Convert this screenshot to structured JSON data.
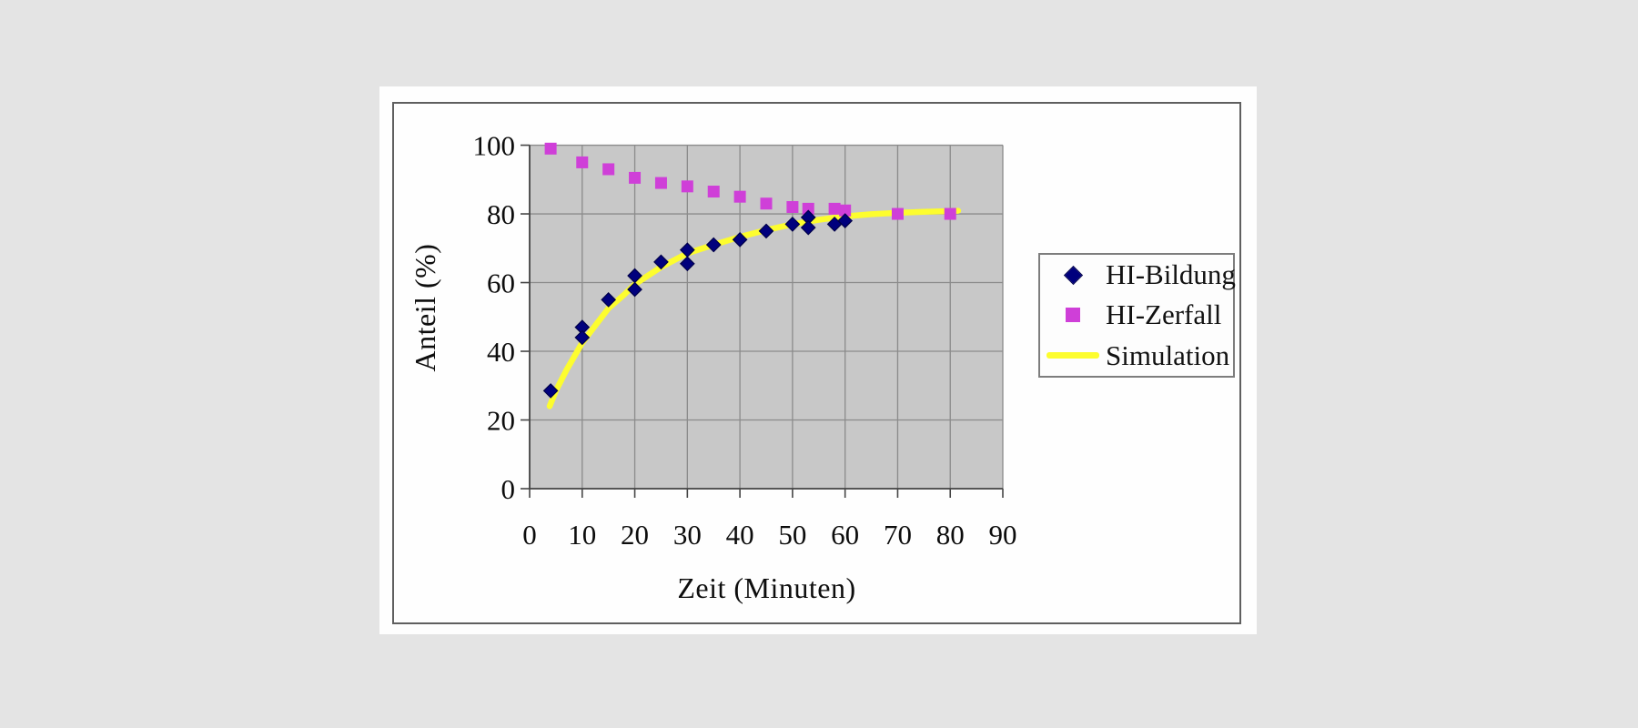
{
  "chart_data": {
    "type": "scatter",
    "title": "",
    "xlabel": "Zeit (Minuten)",
    "ylabel": "Anteil (%)",
    "xlim": [
      0,
      90
    ],
    "ylim": [
      0,
      100
    ],
    "x_ticks": [
      0,
      10,
      20,
      30,
      40,
      50,
      60,
      70,
      80,
      90
    ],
    "y_ticks": [
      0,
      20,
      40,
      60,
      80,
      100
    ],
    "grid": true,
    "legend_position": "right",
    "plot_bg": "#c8c8c8",
    "gridline_color": "#8b8b8b",
    "axis_color": "#454545",
    "series": [
      {
        "name": "HI-Bildung",
        "marker": "diamond",
        "color": "#00007d",
        "points": [
          [
            4,
            28.5
          ],
          [
            10,
            47
          ],
          [
            10,
            44
          ],
          [
            15,
            55
          ],
          [
            20,
            62
          ],
          [
            20,
            58
          ],
          [
            25,
            66
          ],
          [
            30,
            69.5
          ],
          [
            30,
            65.5
          ],
          [
            35,
            71
          ],
          [
            40,
            72.5
          ],
          [
            45,
            75
          ],
          [
            50,
            77
          ],
          [
            53,
            79
          ],
          [
            53,
            76
          ],
          [
            58,
            77
          ],
          [
            60,
            78
          ]
        ]
      },
      {
        "name": "HI-Zerfall",
        "marker": "square",
        "color": "#cf3fd8",
        "points": [
          [
            4,
            99
          ],
          [
            10,
            95
          ],
          [
            15,
            93
          ],
          [
            20,
            90.5
          ],
          [
            25,
            89
          ],
          [
            30,
            88
          ],
          [
            35,
            86.5
          ],
          [
            40,
            85
          ],
          [
            45,
            83
          ],
          [
            50,
            82
          ],
          [
            53,
            81.5
          ],
          [
            58,
            81.5
          ],
          [
            60,
            81
          ],
          [
            70,
            80
          ],
          [
            80,
            80
          ]
        ]
      },
      {
        "name": "Simulation",
        "marker": "line",
        "color": "#fdfd2e",
        "points": [
          [
            3.8,
            24
          ],
          [
            5,
            28.5
          ],
          [
            7,
            34.5
          ],
          [
            10,
            42.5
          ],
          [
            13,
            48.5
          ],
          [
            15,
            52.5
          ],
          [
            18,
            56.5
          ],
          [
            20,
            59.5
          ],
          [
            25,
            64.5
          ],
          [
            30,
            68.5
          ],
          [
            35,
            71
          ],
          [
            40,
            73.3
          ],
          [
            45,
            75.3
          ],
          [
            50,
            77
          ],
          [
            55,
            78.3
          ],
          [
            60,
            79.3
          ],
          [
            65,
            79.9
          ],
          [
            70,
            80.3
          ],
          [
            75,
            80.6
          ],
          [
            80,
            80.8
          ],
          [
            81.5,
            80.9
          ]
        ]
      }
    ]
  }
}
